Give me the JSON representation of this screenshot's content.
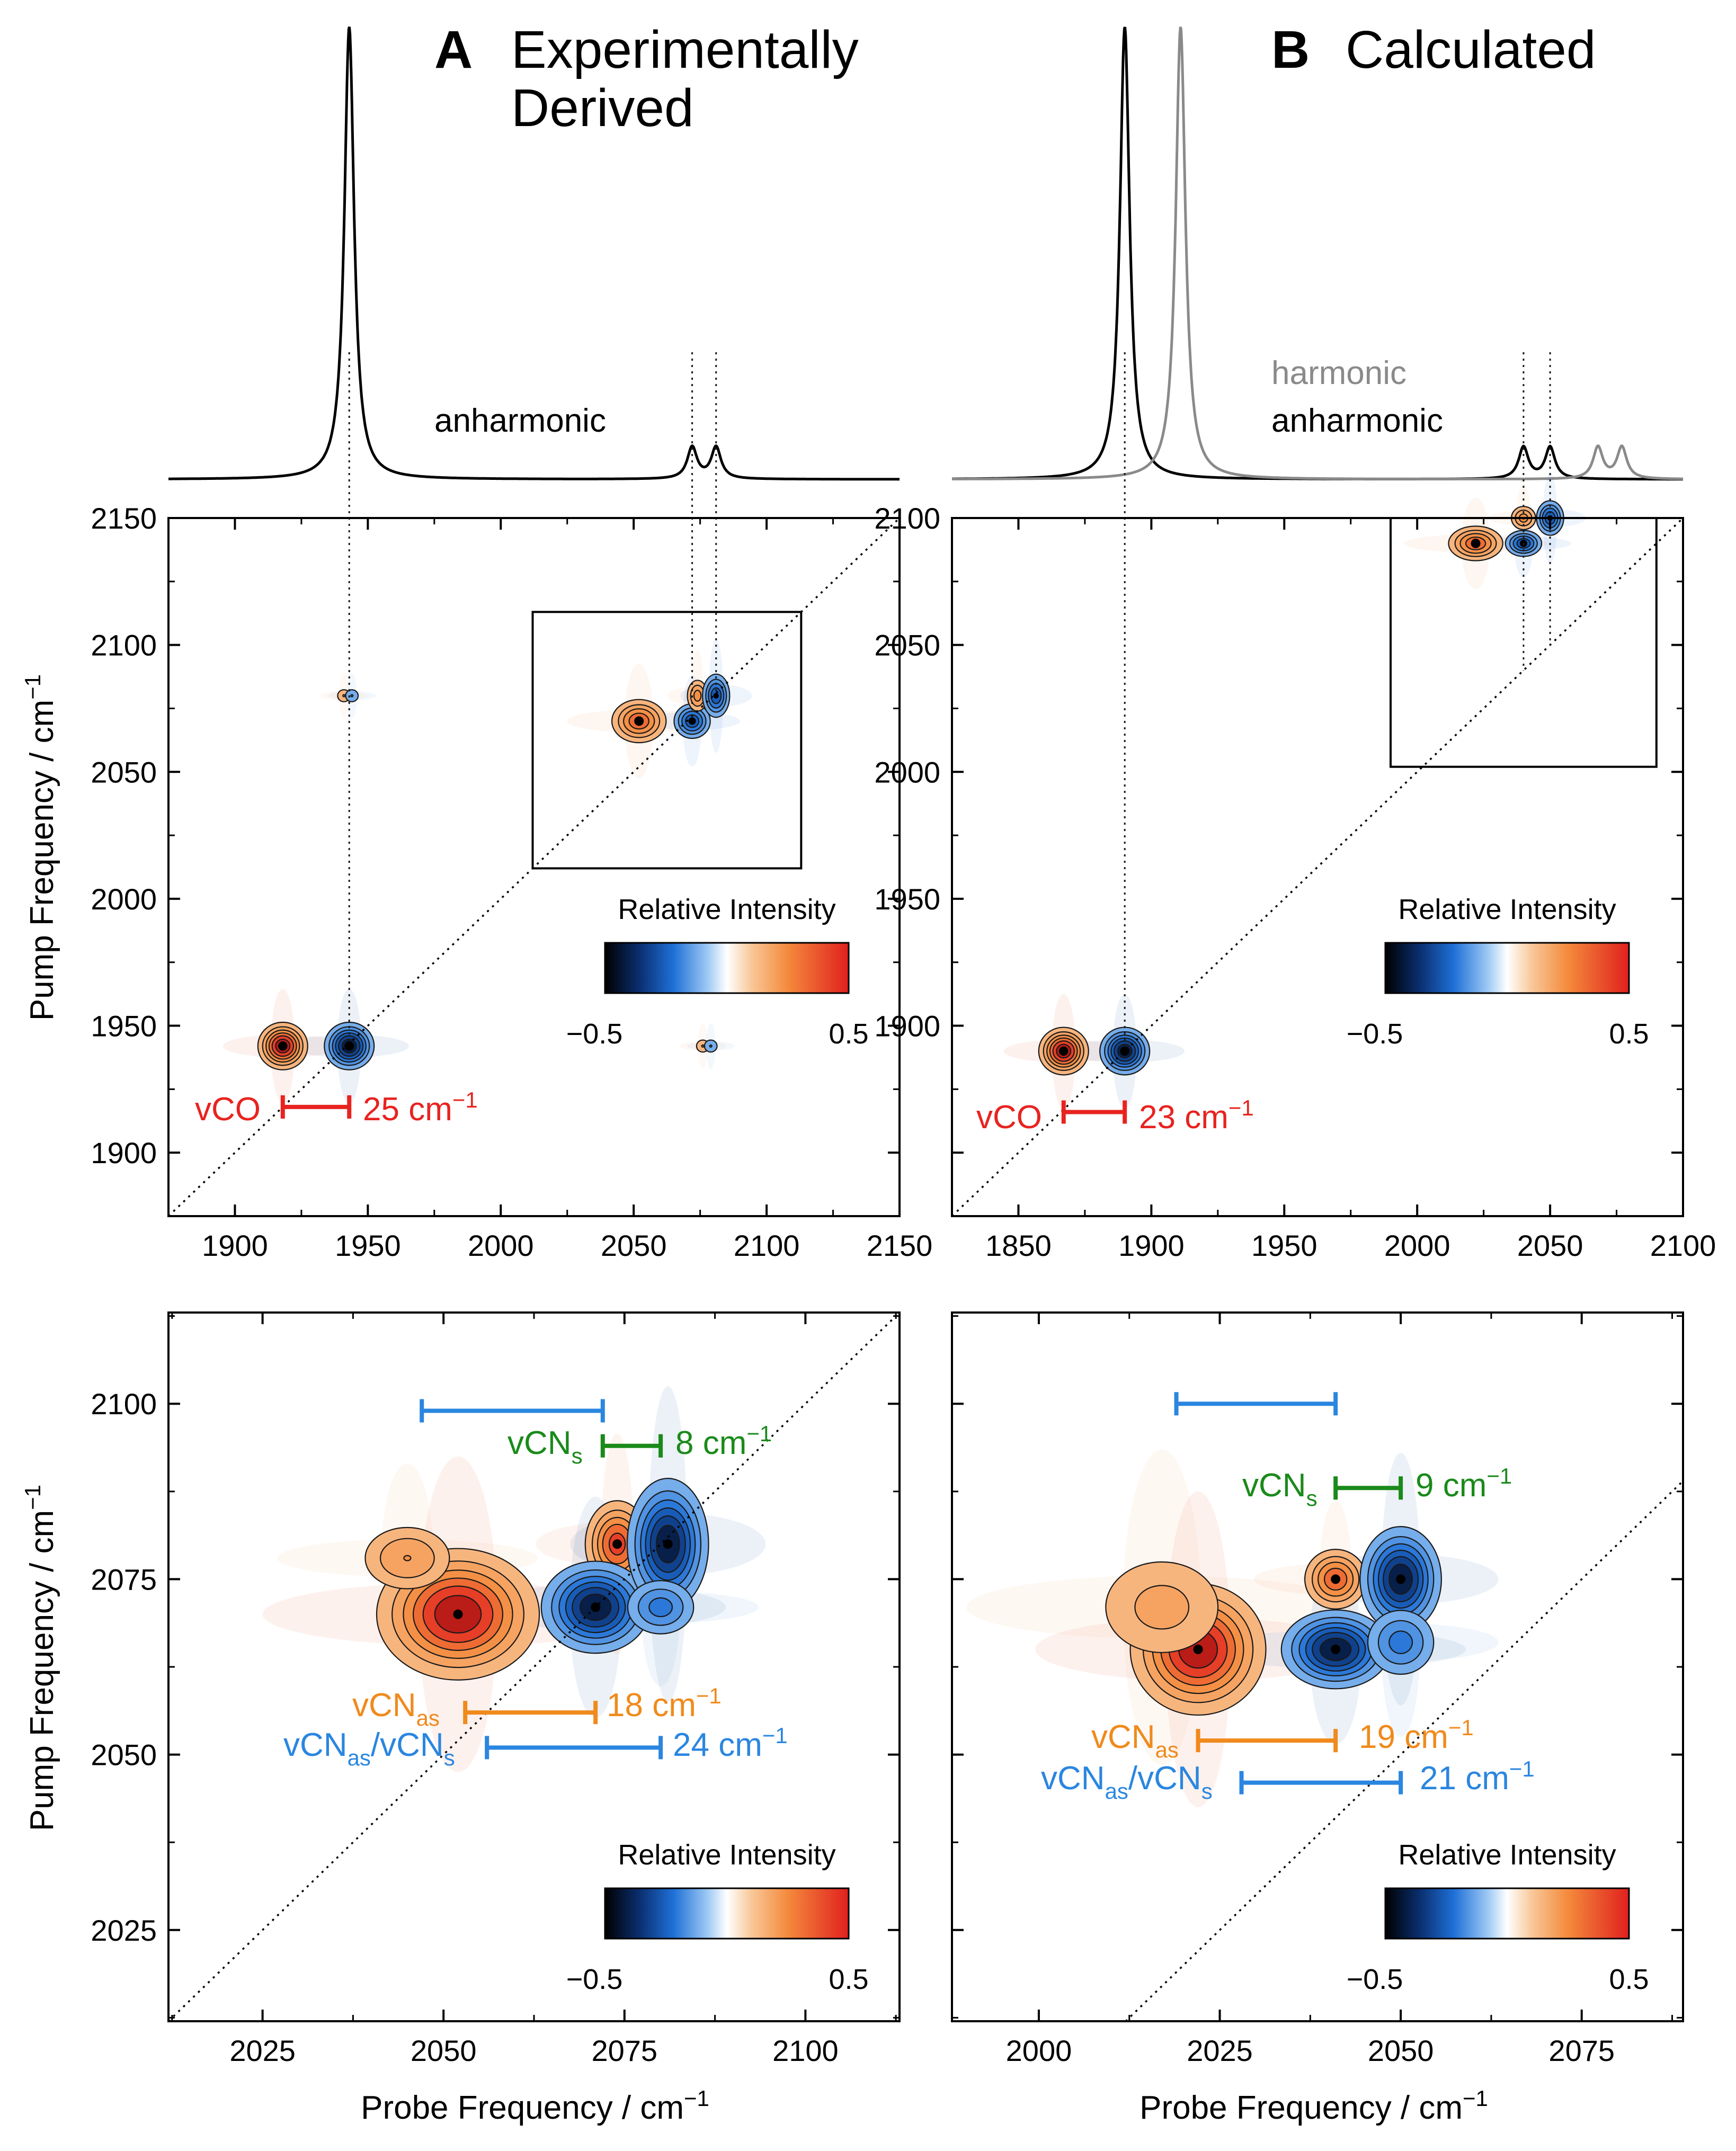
{
  "panels": {
    "A": {
      "letter": "A",
      "title_line1": "Experimentally",
      "title_line2": "Derived"
    },
    "B": {
      "letter": "B",
      "title": "Calculated"
    }
  },
  "labels": {
    "anharmonic": "anharmonic",
    "harmonic": "harmonic",
    "relative_intensity": "Relative Intensity",
    "colorbar_min": "−0.5",
    "colorbar_max": "0.5",
    "pump_axis": "Pump Frequency / cm",
    "probe_axis": "Probe Frequency / cm",
    "axis_sup": "−1"
  },
  "annotations": {
    "a_top_vco": {
      "label": "vCO",
      "value": "25 cm",
      "sup": "−1"
    },
    "b_top_vco": {
      "label": "vCO",
      "value": "23 cm",
      "sup": "−1"
    },
    "a_bot_cns": {
      "label": "vCN",
      "sub": "s",
      "value": "8 cm",
      "sup": "−1"
    },
    "a_bot_cnas": {
      "label": "vCN",
      "sub": "as",
      "value": "18 cm",
      "sup": "−1"
    },
    "a_bot_mix": {
      "label1": "vCN",
      "sub1": "as",
      "sep": "/vCN",
      "sub2": "s",
      "value": "24 cm",
      "sup": "−1"
    },
    "b_bot_cns": {
      "label": "vCN",
      "sub": "s",
      "value": "9 cm",
      "sup": "−1"
    },
    "b_bot_cnas": {
      "label": "vCN",
      "sub": "as",
      "value": "19 cm",
      "sup": "−1"
    },
    "b_bot_mix": {
      "label1": "vCN",
      "sub1": "as",
      "sep": "/vCN",
      "sub2": "s",
      "value": "21 cm",
      "sup": "−1"
    }
  },
  "colors": {
    "vco": "#e8231f",
    "cn_s": "#1a8a1a",
    "cn_as": "#f08a1c",
    "mix": "#2a86e0",
    "harmonic": "#8a8a8a",
    "anharmonic": "#000000"
  },
  "chart_data": [
    {
      "id": "A_top",
      "type": "heatmap",
      "title": "Experimentally Derived",
      "xlabel": "Probe Frequency / cm−1",
      "ylabel": "Pump Frequency / cm−1",
      "xlim": [
        1875,
        2150
      ],
      "ylim": [
        1875,
        2150
      ],
      "xticks": [
        1900,
        1950,
        2000,
        2050,
        2100,
        2150
      ],
      "yticks": [
        1900,
        1950,
        2000,
        2050,
        2100,
        2150
      ],
      "peaks": [
        {
          "x": 1918,
          "y": 1942,
          "sign": 1,
          "amp": 1.0,
          "sx": 5,
          "sy": 5
        },
        {
          "x": 1943,
          "y": 1942,
          "sign": -1,
          "amp": 1.0,
          "sx": 5,
          "sy": 5
        },
        {
          "x": 2052,
          "y": 2070,
          "sign": 1,
          "amp": 0.7,
          "sx": 6,
          "sy": 5
        },
        {
          "x": 2072,
          "y": 2070,
          "sign": -1,
          "amp": 0.7,
          "sx": 4,
          "sy": 4
        },
        {
          "x": 2074,
          "y": 2080,
          "sign": 1,
          "amp": 0.5,
          "sx": 2.5,
          "sy": 4
        },
        {
          "x": 2081,
          "y": 2080,
          "sign": -1,
          "amp": 0.7,
          "sx": 3,
          "sy": 5
        },
        {
          "x": 1941,
          "y": 2080,
          "sign": 1,
          "amp": 0.3,
          "sx": 2,
          "sy": 2
        },
        {
          "x": 1944,
          "y": 2080,
          "sign": -1,
          "amp": 0.3,
          "sx": 2,
          "sy": 2
        },
        {
          "x": 2076,
          "y": 1942,
          "sign": 1,
          "amp": 0.3,
          "sx": 2,
          "sy": 2
        },
        {
          "x": 2079,
          "y": 1942,
          "sign": -1,
          "amp": 0.3,
          "sx": 2,
          "sy": 2
        }
      ],
      "dotted_lines_x": [
        1943,
        2072,
        2081
      ],
      "inset_box": {
        "x0": 2012,
        "x1": 2113,
        "y0": 2012,
        "y1": 2113
      },
      "bracket": {
        "from": 1918,
        "to": 1943,
        "y": 1918
      }
    },
    {
      "id": "B_top",
      "type": "heatmap",
      "title": "Calculated",
      "xlabel": "Probe Frequency / cm−1",
      "ylabel": "Pump Frequency / cm−1",
      "xlim": [
        1825,
        2100
      ],
      "ylim": [
        1825,
        2100
      ],
      "xticks": [
        1850,
        1900,
        1950,
        2000,
        2050,
        2100
      ],
      "yticks": [
        1900,
        1950,
        2000,
        2050,
        2100
      ],
      "peaks": [
        {
          "x": 1867,
          "y": 1890,
          "sign": 1,
          "amp": 1.0,
          "sx": 5,
          "sy": 5
        },
        {
          "x": 1890,
          "y": 1890,
          "sign": -1,
          "amp": 1.0,
          "sx": 5,
          "sy": 5
        },
        {
          "x": 2022,
          "y": 2090,
          "sign": 1,
          "amp": 0.7,
          "sx": 6,
          "sy": 4
        },
        {
          "x": 2040,
          "y": 2100,
          "sign": 1,
          "amp": 0.5,
          "sx": 3,
          "sy": 3
        },
        {
          "x": 2040,
          "y": 2090,
          "sign": -1,
          "amp": 0.7,
          "sx": 4,
          "sy": 3
        },
        {
          "x": 2050,
          "y": 2100,
          "sign": -1,
          "amp": 0.7,
          "sx": 3,
          "sy": 4
        }
      ],
      "dotted_lines_x": [
        1890,
        2040,
        2050
      ],
      "inset_box": {
        "x0": 1990,
        "x1": 2090,
        "y0": 2002,
        "y1": 2100
      },
      "bracket": {
        "from": 1867,
        "to": 1890,
        "y": 1866
      }
    },
    {
      "id": "A_bottom",
      "type": "heatmap",
      "xlabel": "Probe Frequency / cm−1",
      "ylabel": "Pump Frequency / cm−1",
      "xlim": [
        2012,
        2113
      ],
      "ylim": [
        2012,
        2113
      ],
      "xticks": [
        2025,
        2050,
        2075,
        2100
      ],
      "yticks": [
        2025,
        2050,
        2075,
        2100
      ],
      "peaks": [
        {
          "x": 2052,
          "y": 2070,
          "sign": 1,
          "amp": 1.0,
          "sx": 6,
          "sy": 5
        },
        {
          "x": 2045,
          "y": 2078,
          "sign": 1,
          "amp": 0.45,
          "sx": 4,
          "sy": 3
        },
        {
          "x": 2074,
          "y": 2080,
          "sign": 1,
          "amp": 0.8,
          "sx": 2.5,
          "sy": 3.5
        },
        {
          "x": 2071,
          "y": 2071,
          "sign": -1,
          "amp": 1.0,
          "sx": 4,
          "sy": 3.5
        },
        {
          "x": 2081,
          "y": 2080,
          "sign": -1,
          "amp": 1.0,
          "sx": 3,
          "sy": 5
        },
        {
          "x": 2080,
          "y": 2071,
          "sign": -1,
          "amp": 0.5,
          "sx": 3,
          "sy": 2.5
        }
      ],
      "brackets": [
        {
          "id": "mix_top",
          "from": 2047,
          "to": 2072,
          "y": 2099
        },
        {
          "id": "cn_s",
          "from": 2072,
          "to": 2080,
          "y": 2094
        },
        {
          "id": "cn_as",
          "from": 2053,
          "to": 2071,
          "y": 2056
        },
        {
          "id": "mix",
          "from": 2056,
          "to": 2080,
          "y": 2051
        }
      ]
    },
    {
      "id": "B_bottom",
      "type": "heatmap",
      "xlabel": "Probe Frequency / cm−1",
      "ylabel": "Pump Frequency / cm−1",
      "xlim": [
        1988,
        2089
      ],
      "ylim": [
        2012,
        2113
      ],
      "xticks": [
        2000,
        2025,
        2050,
        2075
      ],
      "yticks": [],
      "peaks": [
        {
          "x": 2022,
          "y": 2065,
          "sign": 1,
          "amp": 1.0,
          "sx": 5,
          "sy": 5
        },
        {
          "x": 2017,
          "y": 2071,
          "sign": 1,
          "amp": 0.35,
          "sx": 6,
          "sy": 5
        },
        {
          "x": 2041,
          "y": 2075,
          "sign": 1,
          "amp": 0.7,
          "sx": 2.5,
          "sy": 2.5
        },
        {
          "x": 2041,
          "y": 2065,
          "sign": -1,
          "amp": 1.0,
          "sx": 4,
          "sy": 3
        },
        {
          "x": 2050,
          "y": 2075,
          "sign": -1,
          "amp": 1.0,
          "sx": 3,
          "sy": 4
        },
        {
          "x": 2050,
          "y": 2066,
          "sign": -1,
          "amp": 0.5,
          "sx": 3,
          "sy": 3
        }
      ],
      "brackets": [
        {
          "id": "mix_top",
          "from": 2019,
          "to": 2041,
          "y": 2100
        },
        {
          "id": "cn_s",
          "from": 2041,
          "to": 2050,
          "y": 2088
        },
        {
          "id": "cn_as",
          "from": 2022,
          "to": 2041,
          "y": 2052
        },
        {
          "id": "mix",
          "from": 2028,
          "to": 2050,
          "y": 2046
        }
      ]
    },
    {
      "id": "A_spectrum",
      "type": "line",
      "series": [
        {
          "name": "anharmonic",
          "color": "#000000",
          "peaks": [
            {
              "x": 1943,
              "h": 1.0
            },
            {
              "x": 2072,
              "h": 0.07
            },
            {
              "x": 2081,
              "h": 0.07
            }
          ]
        }
      ]
    },
    {
      "id": "B_spectrum",
      "type": "line",
      "series": [
        {
          "name": "anharmonic",
          "color": "#000000",
          "peaks": [
            {
              "x": 1890,
              "h": 1.0
            },
            {
              "x": 2040,
              "h": 0.07
            },
            {
              "x": 2050,
              "h": 0.07
            }
          ]
        },
        {
          "name": "harmonic",
          "color": "#8a8a8a",
          "peaks": [
            {
              "x": 1911,
              "h": 1.0
            },
            {
              "x": 2068,
              "h": 0.07
            },
            {
              "x": 2077,
              "h": 0.07
            }
          ]
        }
      ]
    }
  ]
}
